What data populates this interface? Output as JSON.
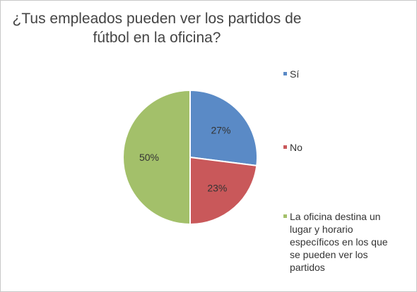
{
  "chart_data": {
    "type": "pie",
    "title_lines": [
      "¿Tus empleados pueden ver los partidos de",
      "fútbol en la oficina?"
    ],
    "slices": [
      {
        "label": "Sí",
        "value": 27,
        "display": "27%",
        "color": "#5a8ac6"
      },
      {
        "label": "No",
        "value": 23,
        "display": "23%",
        "color": "#c9585a"
      },
      {
        "label": "La oficina destina un lugar y horario específicos en los que se pueden ver los partidos",
        "value": 50,
        "display": "50%",
        "color": "#a3c06a"
      }
    ],
    "legend_position": "right",
    "start_angle": "top, clockwise"
  }
}
